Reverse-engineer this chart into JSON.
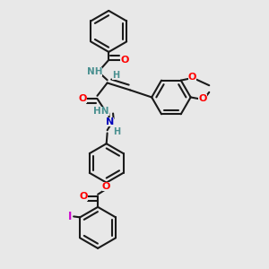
{
  "bg_color": "#e8e8e8",
  "bond_color": "#1a1a1a",
  "atom_colors": {
    "O": "#ff0000",
    "N": "#0000bb",
    "H": "#4a9090",
    "I": "#cc00cc",
    "C": "#1a1a1a"
  }
}
